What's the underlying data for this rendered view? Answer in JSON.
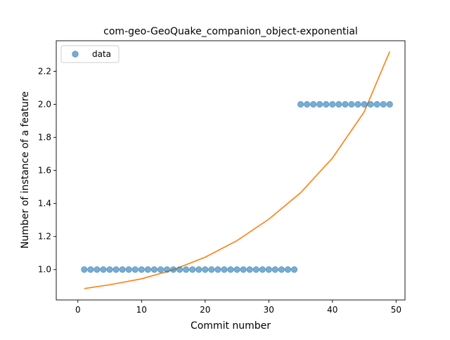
{
  "chart_data": {
    "type": "scatter",
    "title": "com-geo-GeoQuake_companion_object-exponential",
    "xlabel": "Commit number",
    "ylabel": "Number of instance of a feature",
    "xlim": [
      -3.4,
      51.4
    ],
    "ylim": [
      0.8161,
      2.3849
    ],
    "x_ticks": [
      0,
      10,
      20,
      30,
      40,
      50
    ],
    "y_ticks": [
      1.0,
      1.2,
      1.4,
      1.6,
      1.8,
      2.0,
      2.2
    ],
    "x_tick_labels": [
      "0",
      "10",
      "20",
      "30",
      "40",
      "50"
    ],
    "y_tick_labels": [
      "1.0",
      "1.2",
      "1.4",
      "1.6",
      "1.8",
      "2.0",
      "2.2"
    ],
    "grid": false,
    "legend": {
      "placement": "top-left",
      "entries": [
        "data"
      ]
    },
    "series": [
      {
        "name": "data",
        "kind": "scatter",
        "color": "#1f77b4",
        "x": [
          1,
          2,
          3,
          4,
          5,
          6,
          7,
          8,
          9,
          10,
          11,
          12,
          13,
          14,
          15,
          16,
          17,
          18,
          19,
          20,
          21,
          22,
          23,
          24,
          25,
          26,
          27,
          28,
          29,
          30,
          31,
          32,
          33,
          34,
          35,
          36,
          37,
          38,
          39,
          40,
          41,
          42,
          43,
          44,
          45,
          46,
          47,
          48,
          49
        ],
        "y": [
          1,
          1,
          1,
          1,
          1,
          1,
          1,
          1,
          1,
          1,
          1,
          1,
          1,
          1,
          1,
          1,
          1,
          1,
          1,
          1,
          1,
          1,
          1,
          1,
          1,
          1,
          1,
          1,
          1,
          1,
          1,
          1,
          1,
          1,
          2,
          2,
          2,
          2,
          2,
          2,
          2,
          2,
          2,
          2,
          2,
          2,
          2,
          2,
          2
        ]
      },
      {
        "kind": "line",
        "color": "#ff7f0e",
        "x": [
          1,
          5,
          10,
          15,
          20,
          25,
          30,
          35,
          40,
          45,
          49
        ],
        "y": [
          0.885,
          0.908,
          0.944,
          0.999,
          1.075,
          1.175,
          1.305,
          1.465,
          1.675,
          1.955,
          2.32
        ]
      }
    ]
  }
}
